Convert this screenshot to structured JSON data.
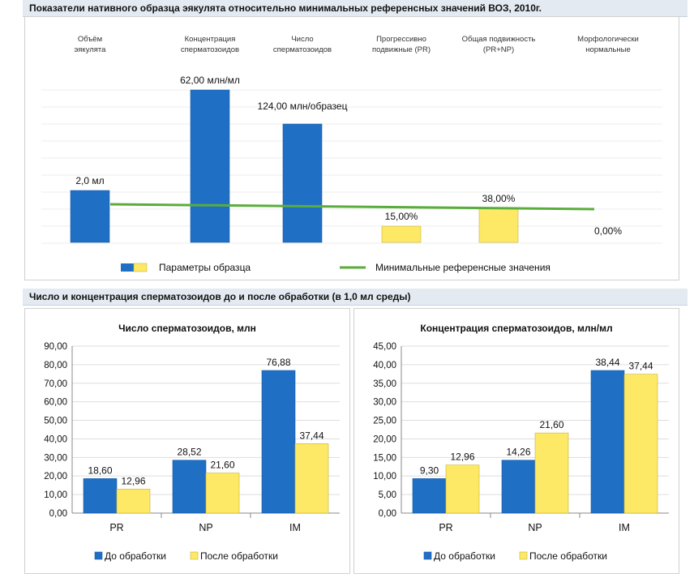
{
  "header_top": "Показатели нативного образца эякулята относительно минимальных референсных значений ВОЗ, 2010г.",
  "header_bottom": "Число и концентрация сперматозоидов до и после обработки (в 1,0 мл среды)",
  "colors": {
    "blue": "#1f6fc5",
    "yellow": "#fde966",
    "green": "#5aad3c",
    "header_bg": "#e3eaf2"
  },
  "chart_data": [
    {
      "type": "bar",
      "title": "Показатели нативного образца эякулята относительно минимальных референсных значений ВОЗ, 2010г.",
      "categories": [
        [
          "Объём",
          "эякулята"
        ],
        [
          "Концентрация",
          "сперматозоидов"
        ],
        [
          "Число",
          "сперматозоидов"
        ],
        [
          "Прогрессивно",
          "подвижные (PR)"
        ],
        [
          "Общая подвижность",
          "(PR+NP)"
        ],
        [
          "Морфологически",
          "нормальные"
        ]
      ],
      "values": [
        2.0,
        62.0,
        124.0,
        15.0,
        38.0,
        0.0
      ],
      "relative_heights": [
        0.32,
        0.94,
        0.73,
        0.1,
        0.21,
        0.0
      ],
      "bar_colors": [
        "blue",
        "blue",
        "blue",
        "yellow",
        "yellow",
        "yellow"
      ],
      "data_labels": [
        "2,0 мл",
        "62,00 млн/мл",
        "124,00 млн/образец",
        "15,00%",
        "38,00%",
        "0,00%"
      ],
      "reference_line_level": 0.22,
      "legend": {
        "series": "Параметры образца",
        "reference": "Минимальные референсные значения"
      }
    },
    {
      "type": "bar",
      "title": "Число сперматозоидов, млн",
      "categories": [
        "PR",
        "NP",
        "IM"
      ],
      "ylim": [
        0,
        90
      ],
      "yticks": [
        "0,00",
        "10,00",
        "20,00",
        "30,00",
        "40,00",
        "50,00",
        "60,00",
        "70,00",
        "80,00",
        "90,00"
      ],
      "tick_step": 10,
      "series": [
        {
          "name": "До обработки",
          "color": "blue",
          "values": [
            18.6,
            28.52,
            76.88
          ],
          "labels": [
            "18,60",
            "28,52",
            "76,88"
          ]
        },
        {
          "name": "После обработки",
          "color": "yellow",
          "values": [
            12.96,
            21.6,
            37.44
          ],
          "labels": [
            "12,96",
            "21,60",
            "37,44"
          ]
        }
      ]
    },
    {
      "type": "bar",
      "title": "Концентрация сперматозоидов, млн/мл",
      "categories": [
        "PR",
        "NP",
        "IM"
      ],
      "ylim": [
        0,
        45
      ],
      "yticks": [
        "0,00",
        "5,00",
        "10,00",
        "15,00",
        "20,00",
        "25,00",
        "30,00",
        "35,00",
        "40,00",
        "45,00"
      ],
      "tick_step": 5,
      "series": [
        {
          "name": "До обработки",
          "color": "blue",
          "values": [
            9.3,
            14.26,
            38.44
          ],
          "labels": [
            "9,30",
            "14,26",
            "38,44"
          ]
        },
        {
          "name": "После обработки",
          "color": "yellow",
          "values": [
            12.96,
            21.6,
            37.44
          ],
          "labels": [
            "12,96",
            "21,60",
            "37,44"
          ]
        }
      ]
    }
  ]
}
